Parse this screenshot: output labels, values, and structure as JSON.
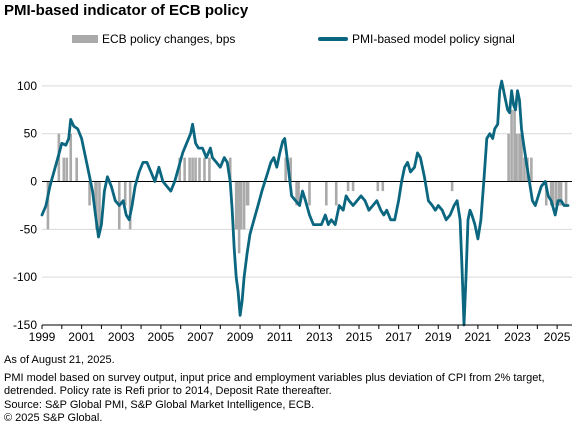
{
  "title": "PMI-based indicator of ECB policy",
  "notes": {
    "as_of": "As of August 21, 2025.",
    "methodology": "PMI model based on survey output, input price and employment variables plus deviation of CPI from 2% target,\ndetrended. Policy rate is Refi prior to 2014, Deposit Rate thereafter.",
    "source": "Source: S&P Global PMI, S&P Global Market Intelligence, ECB.",
    "copyright": "© 2025 S&P Global."
  },
  "colors": {
    "bars": "#aaaaaa",
    "line": "#0b6680",
    "grid": "#d9d9d9"
  },
  "chart_data": {
    "type": "bar+line",
    "xlabel": "",
    "ylabel": "",
    "ylim": [
      -150,
      125
    ],
    "xlim": [
      1999.0,
      2025.75
    ],
    "y_ticks": [
      100,
      50,
      0,
      -50,
      -100,
      -150
    ],
    "x_tick_labels": [
      "1999",
      "2001",
      "2003",
      "2005",
      "2007",
      "2009",
      "2011",
      "2013",
      "2015",
      "2017",
      "2019",
      "2021",
      "2023",
      "2025"
    ],
    "legend_position": "top",
    "series": [
      {
        "name": "ECB policy changes, bps",
        "type": "bar",
        "points": [
          [
            1999.3,
            -50
          ],
          [
            1999.85,
            50
          ],
          [
            2000.1,
            25
          ],
          [
            2000.25,
            25
          ],
          [
            2000.45,
            50
          ],
          [
            2000.75,
            25
          ],
          [
            2001.4,
            -25
          ],
          [
            2001.7,
            -25
          ],
          [
            2001.75,
            -50
          ],
          [
            2001.9,
            -50
          ],
          [
            2002.9,
            -50
          ],
          [
            2003.2,
            -25
          ],
          [
            2003.45,
            -50
          ],
          [
            2005.95,
            25
          ],
          [
            2006.2,
            25
          ],
          [
            2006.45,
            25
          ],
          [
            2006.6,
            25
          ],
          [
            2006.75,
            25
          ],
          [
            2006.95,
            25
          ],
          [
            2007.2,
            25
          ],
          [
            2007.45,
            25
          ],
          [
            2008.5,
            25
          ],
          [
            2008.8,
            -50
          ],
          [
            2008.85,
            -50
          ],
          [
            2008.95,
            -75
          ],
          [
            2009.05,
            -50
          ],
          [
            2009.2,
            -50
          ],
          [
            2009.35,
            -25
          ],
          [
            2009.4,
            -25
          ],
          [
            2011.3,
            25
          ],
          [
            2011.55,
            25
          ],
          [
            2011.85,
            -25
          ],
          [
            2011.95,
            -25
          ],
          [
            2012.5,
            -25
          ],
          [
            2013.35,
            -25
          ],
          [
            2013.85,
            -25
          ],
          [
            2014.45,
            -10
          ],
          [
            2014.7,
            -10
          ],
          [
            2015.95,
            -10
          ],
          [
            2016.2,
            -10
          ],
          [
            2019.7,
            -10
          ],
          [
            2022.55,
            50
          ],
          [
            2022.7,
            75
          ],
          [
            2022.85,
            75
          ],
          [
            2022.95,
            50
          ],
          [
            2023.1,
            50
          ],
          [
            2023.2,
            50
          ],
          [
            2023.35,
            25
          ],
          [
            2023.5,
            25
          ],
          [
            2023.7,
            25
          ],
          [
            2024.45,
            -25
          ],
          [
            2024.7,
            -25
          ],
          [
            2024.8,
            -25
          ],
          [
            2024.95,
            -25
          ],
          [
            2025.1,
            -25
          ],
          [
            2025.2,
            -25
          ],
          [
            2025.45,
            -25
          ]
        ]
      },
      {
        "name": "PMI-based model policy signal",
        "type": "line",
        "points": [
          [
            1999.0,
            -35
          ],
          [
            1999.2,
            -25
          ],
          [
            1999.4,
            -5
          ],
          [
            1999.6,
            10
          ],
          [
            1999.8,
            25
          ],
          [
            2000.0,
            40
          ],
          [
            2000.2,
            38
          ],
          [
            2000.35,
            45
          ],
          [
            2000.45,
            65
          ],
          [
            2000.6,
            58
          ],
          [
            2000.8,
            55
          ],
          [
            2001.0,
            45
          ],
          [
            2001.2,
            25
          ],
          [
            2001.4,
            5
          ],
          [
            2001.55,
            -10
          ],
          [
            2001.7,
            -35
          ],
          [
            2001.85,
            -58
          ],
          [
            2002.0,
            -45
          ],
          [
            2002.15,
            -10
          ],
          [
            2002.3,
            5
          ],
          [
            2002.5,
            -5
          ],
          [
            2002.7,
            -20
          ],
          [
            2002.9,
            -25
          ],
          [
            2003.1,
            -20
          ],
          [
            2003.25,
            -35
          ],
          [
            2003.4,
            -40
          ],
          [
            2003.55,
            -25
          ],
          [
            2003.7,
            -5
          ],
          [
            2003.9,
            10
          ],
          [
            2004.1,
            20
          ],
          [
            2004.3,
            20
          ],
          [
            2004.5,
            10
          ],
          [
            2004.7,
            0
          ],
          [
            2004.9,
            15
          ],
          [
            2005.1,
            0
          ],
          [
            2005.3,
            -5
          ],
          [
            2005.5,
            -10
          ],
          [
            2005.7,
            0
          ],
          [
            2005.9,
            15
          ],
          [
            2006.1,
            30
          ],
          [
            2006.3,
            40
          ],
          [
            2006.5,
            50
          ],
          [
            2006.6,
            60
          ],
          [
            2006.75,
            40
          ],
          [
            2006.9,
            35
          ],
          [
            2007.1,
            35
          ],
          [
            2007.3,
            25
          ],
          [
            2007.5,
            35
          ],
          [
            2007.6,
            25
          ],
          [
            2007.8,
            20
          ],
          [
            2008.0,
            15
          ],
          [
            2008.2,
            25
          ],
          [
            2008.35,
            20
          ],
          [
            2008.5,
            0
          ],
          [
            2008.6,
            -30
          ],
          [
            2008.7,
            -70
          ],
          [
            2008.8,
            -100
          ],
          [
            2008.9,
            -115
          ],
          [
            2009.0,
            -140
          ],
          [
            2009.1,
            -125
          ],
          [
            2009.2,
            -100
          ],
          [
            2009.35,
            -75
          ],
          [
            2009.5,
            -55
          ],
          [
            2009.7,
            -40
          ],
          [
            2009.9,
            -25
          ],
          [
            2010.1,
            -10
          ],
          [
            2010.25,
            0
          ],
          [
            2010.4,
            10
          ],
          [
            2010.55,
            20
          ],
          [
            2010.7,
            25
          ],
          [
            2010.85,
            15
          ],
          [
            2011.0,
            30
          ],
          [
            2011.15,
            42
          ],
          [
            2011.25,
            45
          ],
          [
            2011.4,
            20
          ],
          [
            2011.6,
            -15
          ],
          [
            2011.8,
            -20
          ],
          [
            2012.0,
            -25
          ],
          [
            2012.15,
            -10
          ],
          [
            2012.3,
            -20
          ],
          [
            2012.5,
            -35
          ],
          [
            2012.7,
            -45
          ],
          [
            2012.9,
            -45
          ],
          [
            2013.1,
            -45
          ],
          [
            2013.3,
            -35
          ],
          [
            2013.45,
            -45
          ],
          [
            2013.6,
            -40
          ],
          [
            2013.8,
            -45
          ],
          [
            2014.0,
            -25
          ],
          [
            2014.2,
            -30
          ],
          [
            2014.35,
            -15
          ],
          [
            2014.5,
            -20
          ],
          [
            2014.7,
            -25
          ],
          [
            2014.9,
            -20
          ],
          [
            2015.1,
            -15
          ],
          [
            2015.3,
            -20
          ],
          [
            2015.5,
            -30
          ],
          [
            2015.7,
            -25
          ],
          [
            2015.9,
            -20
          ],
          [
            2016.1,
            -30
          ],
          [
            2016.25,
            -35
          ],
          [
            2016.4,
            -30
          ],
          [
            2016.6,
            -40
          ],
          [
            2016.8,
            -40
          ],
          [
            2017.0,
            -20
          ],
          [
            2017.15,
            0
          ],
          [
            2017.3,
            15
          ],
          [
            2017.45,
            20
          ],
          [
            2017.6,
            10
          ],
          [
            2017.8,
            15
          ],
          [
            2017.95,
            30
          ],
          [
            2018.1,
            25
          ],
          [
            2018.3,
            5
          ],
          [
            2018.5,
            -20
          ],
          [
            2018.7,
            -25
          ],
          [
            2018.85,
            -30
          ],
          [
            2019.0,
            -25
          ],
          [
            2019.2,
            -30
          ],
          [
            2019.4,
            -40
          ],
          [
            2019.6,
            -35
          ],
          [
            2019.8,
            -25
          ],
          [
            2019.95,
            -20
          ],
          [
            2020.1,
            -40
          ],
          [
            2020.2,
            -90
          ],
          [
            2020.3,
            -150
          ],
          [
            2020.4,
            -100
          ],
          [
            2020.5,
            -40
          ],
          [
            2020.6,
            -30
          ],
          [
            2020.7,
            -35
          ],
          [
            2020.85,
            -45
          ],
          [
            2021.0,
            -60
          ],
          [
            2021.15,
            -40
          ],
          [
            2021.3,
            0
          ],
          [
            2021.45,
            45
          ],
          [
            2021.6,
            50
          ],
          [
            2021.75,
            45
          ],
          [
            2021.85,
            55
          ],
          [
            2022.0,
            60
          ],
          [
            2022.1,
            95
          ],
          [
            2022.2,
            105
          ],
          [
            2022.35,
            90
          ],
          [
            2022.5,
            75
          ],
          [
            2022.6,
            72
          ],
          [
            2022.7,
            95
          ],
          [
            2022.8,
            80
          ],
          [
            2022.9,
            75
          ],
          [
            2023.0,
            95
          ],
          [
            2023.1,
            85
          ],
          [
            2023.2,
            55
          ],
          [
            2023.3,
            40
          ],
          [
            2023.45,
            20
          ],
          [
            2023.6,
            0
          ],
          [
            2023.75,
            -20
          ],
          [
            2023.9,
            -25
          ],
          [
            2024.05,
            -15
          ],
          [
            2024.2,
            -5
          ],
          [
            2024.4,
            0
          ],
          [
            2024.55,
            -15
          ],
          [
            2024.7,
            -20
          ],
          [
            2024.9,
            -35
          ],
          [
            2025.05,
            -20
          ],
          [
            2025.2,
            -20
          ],
          [
            2025.35,
            -25
          ],
          [
            2025.55,
            -25
          ]
        ]
      }
    ]
  }
}
